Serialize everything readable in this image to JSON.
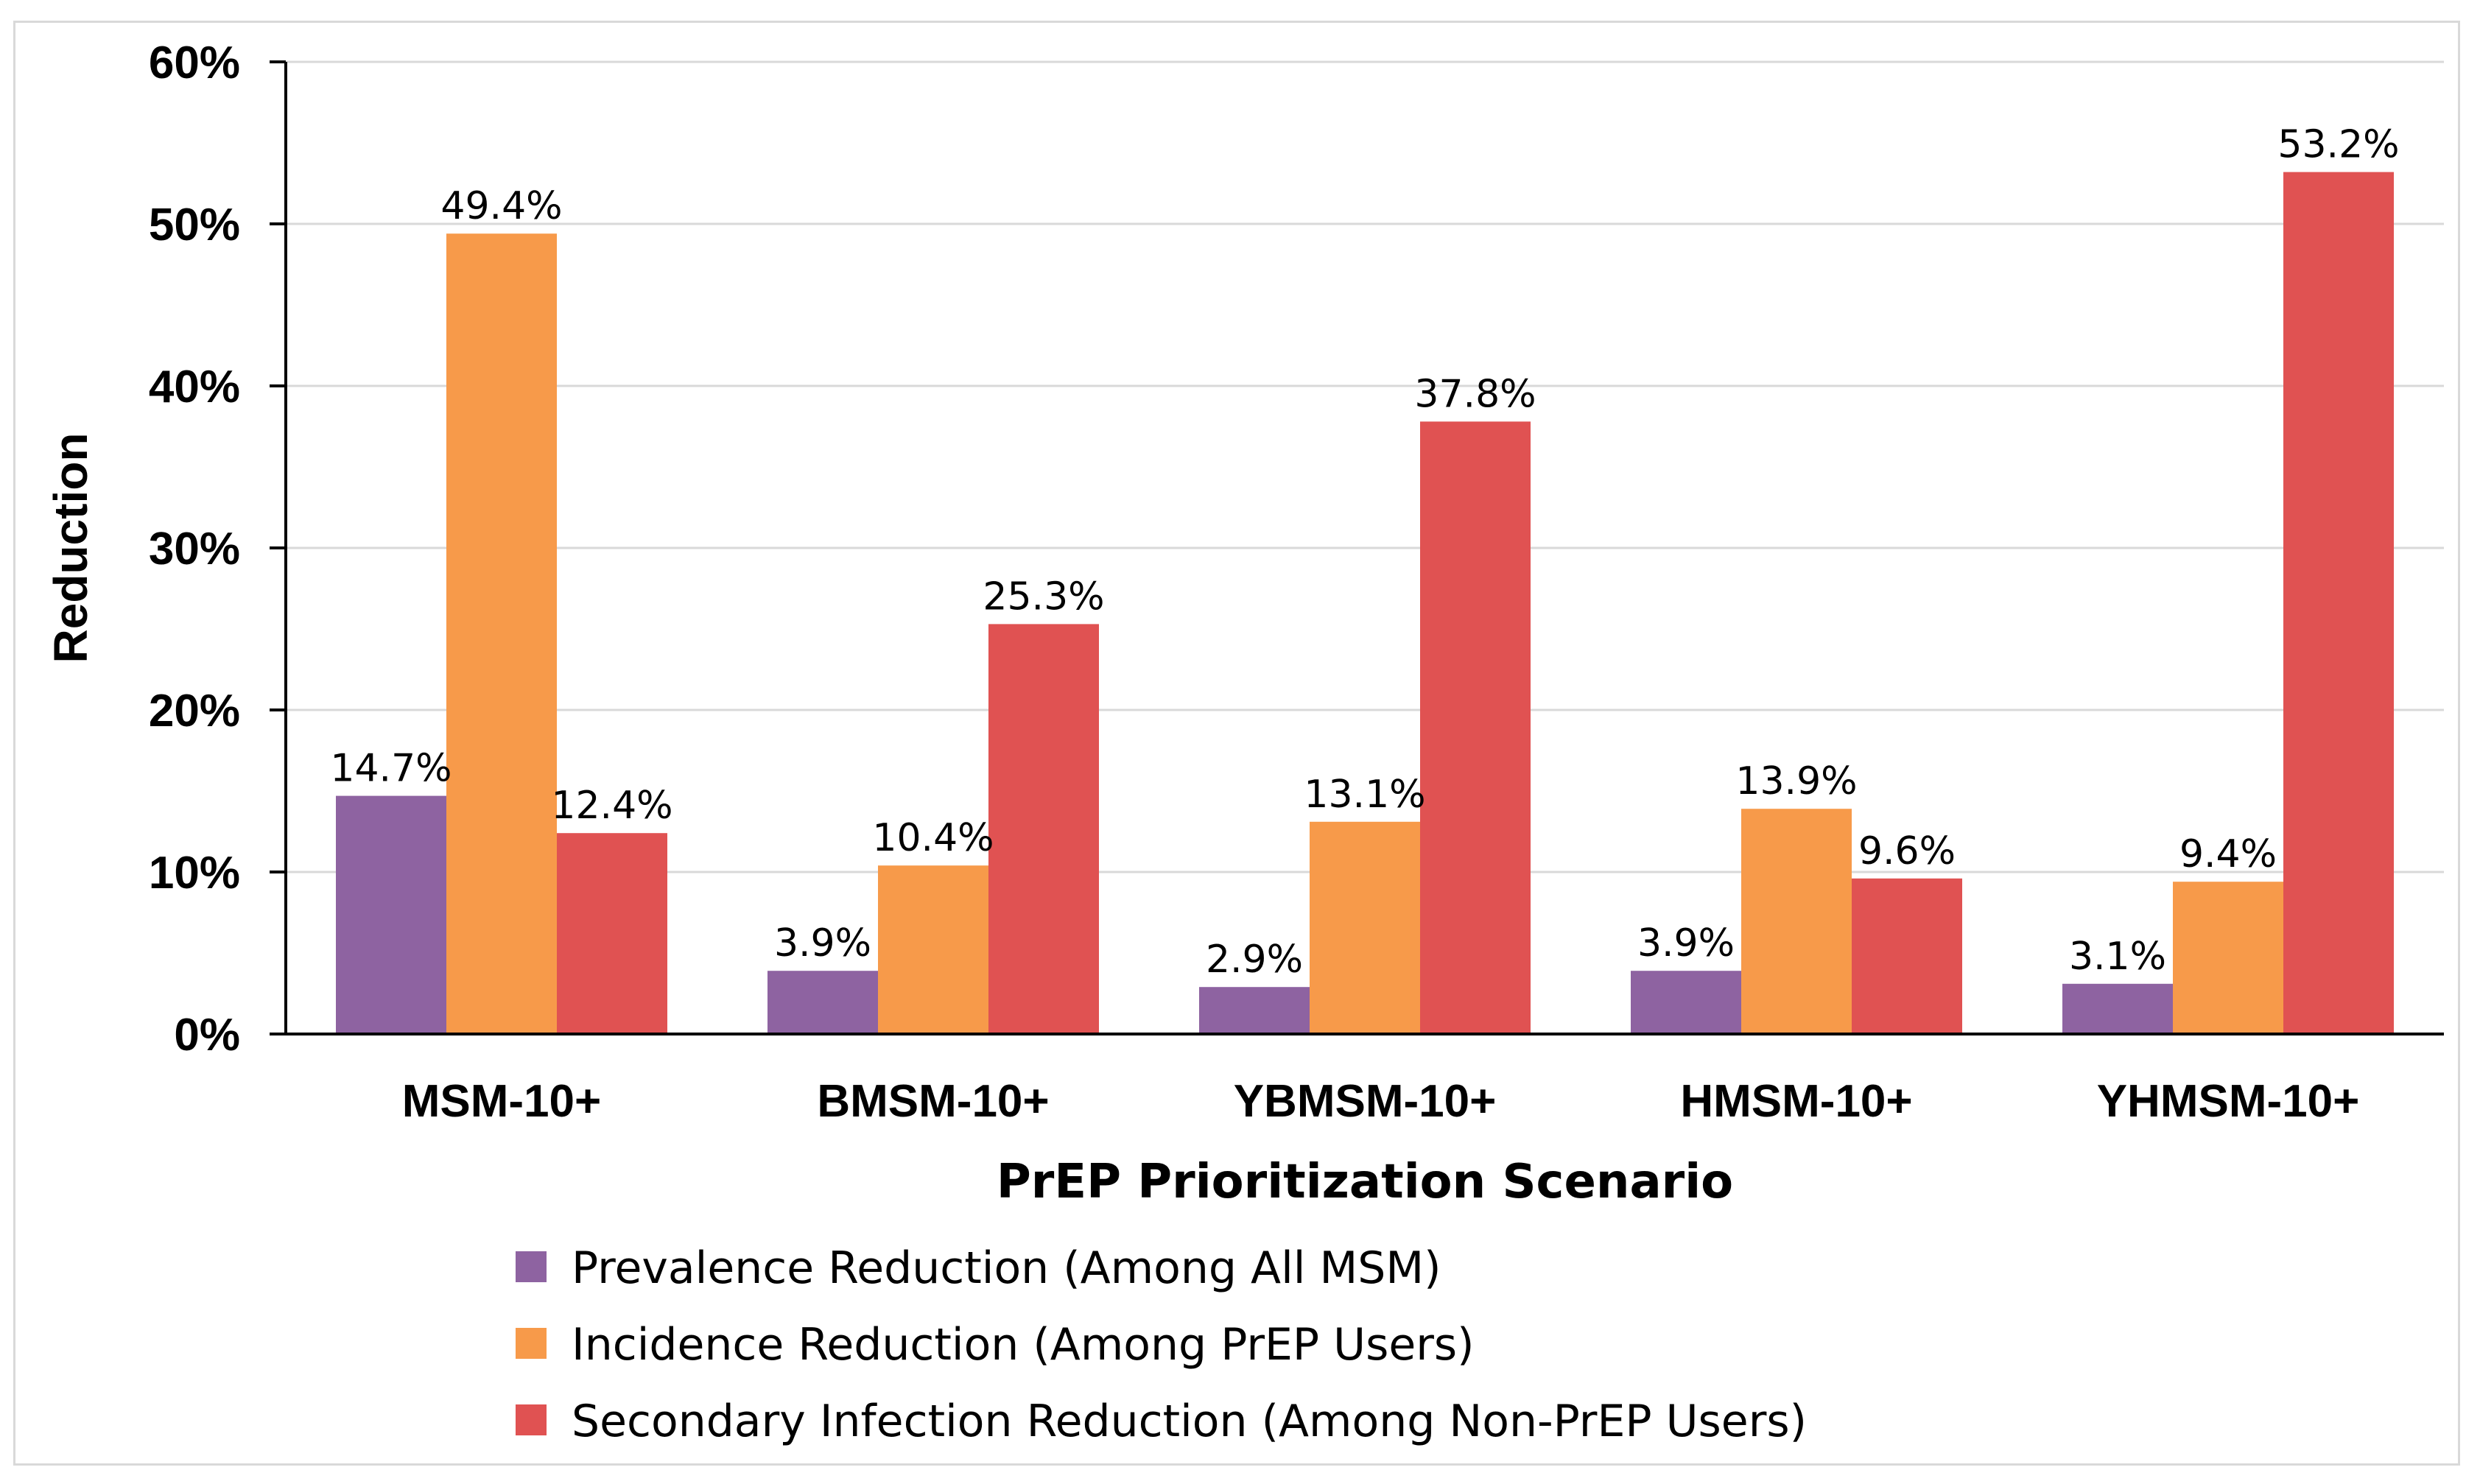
{
  "chart_data": {
    "type": "bar",
    "title": "",
    "xlabel": "PrEP Prioritization Scenario",
    "ylabel": "Reduction",
    "ylim": [
      0,
      60
    ],
    "yticks": [
      "0%",
      "10%",
      "20%",
      "30%",
      "40%",
      "50%",
      "60%"
    ],
    "ytick_values": [
      0,
      10,
      20,
      30,
      40,
      50,
      60
    ],
    "grid": true,
    "legend_position": "bottom",
    "categories": [
      "MSM-10+",
      "BMSM-10+",
      "YBMSM-10+",
      "HMSM-10+",
      "YHMSM-10+"
    ],
    "series": [
      {
        "name": "Prevalence Reduction (Among All MSM)",
        "color": "#8e63a1",
        "values": [
          14.7,
          3.9,
          2.9,
          3.9,
          3.1
        ],
        "labels": [
          "14.7%",
          "3.9%",
          "2.9%",
          "3.9%",
          "3.1%"
        ]
      },
      {
        "name": "Incidence Reduction (Among PrEP Users)",
        "color": "#f79a4a",
        "values": [
          49.4,
          10.4,
          13.1,
          13.9,
          9.4
        ],
        "labels": [
          "49.4%",
          "10.4%",
          "13.1%",
          "13.9%",
          "9.4%"
        ]
      },
      {
        "name": "Secondary Infection Reduction (Among Non-PrEP Users)",
        "color": "#e05252",
        "values": [
          12.4,
          25.3,
          37.8,
          9.6,
          53.2
        ],
        "labels": [
          "12.4%",
          "25.3%",
          "37.8%",
          "9.6%",
          "53.2%"
        ]
      }
    ]
  }
}
